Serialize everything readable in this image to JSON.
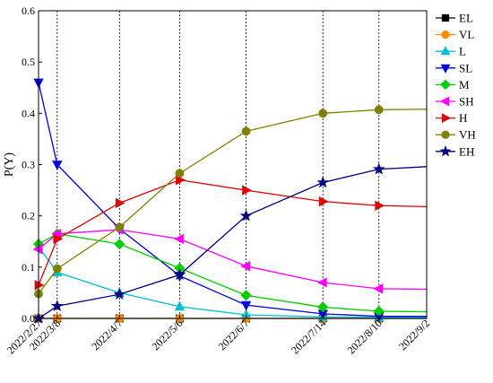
{
  "chart_data": {
    "type": "line",
    "ylabel": "P(Y)",
    "xlabel": "",
    "ylim": [
      0,
      0.6
    ],
    "yticks": [
      "0.0",
      "0.1",
      "0.2",
      "0.3",
      "0.4",
      "0.5",
      "0.6"
    ],
    "categories": [
      "2022/2/27",
      "2022/3/8",
      "2022/4/7",
      "2022/5/6",
      "2022/6/7",
      "2022/7/14",
      "2022/8/10",
      "2022/9/2"
    ],
    "x": [
      0,
      9,
      39,
      68,
      100,
      137,
      164,
      187
    ],
    "grid": "vertical",
    "legend_position": "right",
    "series": [
      {
        "name": "EL",
        "color": "#000000",
        "marker": "square",
        "values": [
          0.0,
          0.0,
          0.0,
          0.0,
          0.0,
          0.0,
          0.0,
          0.0
        ]
      },
      {
        "name": "VL",
        "color": "#FF8C00",
        "marker": "circle",
        "values": [
          0.0,
          0.0,
          0.0,
          0.0,
          0.0,
          0.0,
          0.0,
          0.0
        ]
      },
      {
        "name": "L",
        "color": "#00BFCF",
        "marker": "triangle-up",
        "values": [
          0.14,
          0.09,
          0.05,
          0.023,
          0.007,
          0.003,
          0.002,
          0.002
        ]
      },
      {
        "name": "SL",
        "color": "#0000E0",
        "marker": "triangle-down",
        "values": [
          0.46,
          0.3,
          0.175,
          0.083,
          0.026,
          0.009,
          0.004,
          0.004
        ]
      },
      {
        "name": "M",
        "color": "#00CC00",
        "marker": "diamond",
        "values": [
          0.145,
          0.165,
          0.145,
          0.098,
          0.045,
          0.022,
          0.014,
          0.013
        ]
      },
      {
        "name": "SH",
        "color": "#FF00FF",
        "marker": "triangle-left",
        "values": [
          0.135,
          0.165,
          0.173,
          0.155,
          0.102,
          0.07,
          0.058,
          0.057
        ]
      },
      {
        "name": "H",
        "color": "#E00000",
        "marker": "triangle-right",
        "values": [
          0.065,
          0.155,
          0.225,
          0.27,
          0.25,
          0.228,
          0.22,
          0.218
        ]
      },
      {
        "name": "VH",
        "color": "#808000",
        "marker": "circle",
        "values": [
          0.048,
          0.097,
          0.178,
          0.283,
          0.365,
          0.4,
          0.407,
          0.408
        ]
      },
      {
        "name": "EH",
        "color": "#000080",
        "marker": "star",
        "values": [
          0.0,
          0.024,
          0.047,
          0.085,
          0.2,
          0.265,
          0.291,
          0.296
        ]
      }
    ]
  }
}
